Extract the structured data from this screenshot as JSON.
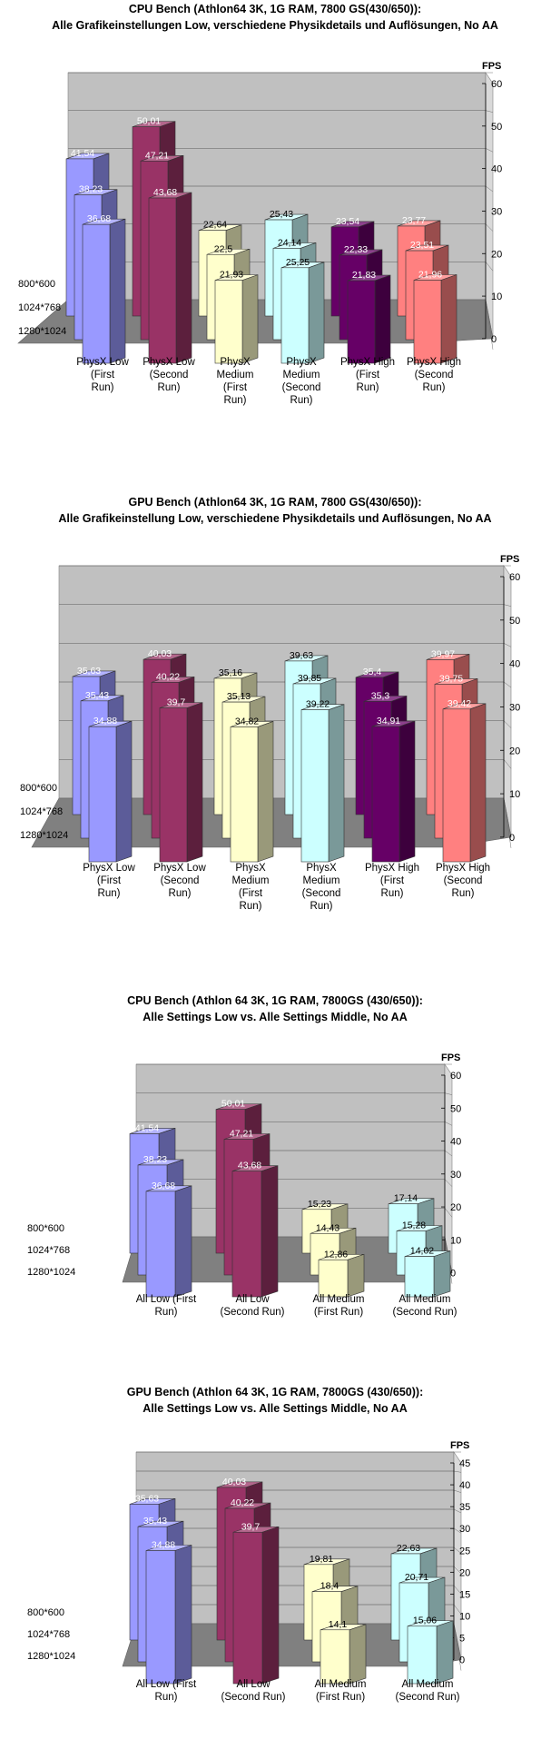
{
  "chart_data": [
    {
      "type": "bar",
      "title": "CPU Bench (Athlon64 3K, 1G RAM, 7800 GS(430/650)):",
      "subtitle": "Alle Grafikeinstellungen Low, verschiedene Physikdetails und Auflösungen, No AA",
      "ylabel": "FPS",
      "ylim": [
        0,
        60
      ],
      "ytick_step": 10,
      "grid": true,
      "categories": [
        "PhysX Low (First Run)",
        "PhysX Low (Second Run)",
        "PhysX Medium (First Run)",
        "PhysX Medium (Second Run)",
        "PhysX High (First Run)",
        "PhysX High (Second Run)"
      ],
      "category_colors": [
        "#9999ff",
        "#993366",
        "#ffffcc",
        "#ccffff",
        "#660066",
        "#ff8080"
      ],
      "series": [
        {
          "name": "800*600",
          "values": [
            41.54,
            50.01,
            22.64,
            25.43,
            23.54,
            23.77
          ],
          "labels": [
            "41,54",
            "50,01",
            "22,64",
            "25,43",
            "23,54",
            "23,77"
          ]
        },
        {
          "name": "1024*768",
          "values": [
            38.23,
            47.21,
            22.5,
            24.14,
            22.33,
            23.51
          ],
          "labels": [
            "38,23",
            "47,21",
            "22,5",
            "24,14",
            "22,33",
            "23,51"
          ]
        },
        {
          "name": "1280*1024",
          "values": [
            36.68,
            43.68,
            21.93,
            25.25,
            21.83,
            21.96
          ],
          "labels": [
            "36,68",
            "43,68",
            "21,93",
            "25,25",
            "21,83",
            "21,96"
          ]
        }
      ]
    },
    {
      "type": "bar",
      "title": "GPU Bench (Athlon64 3K, 1G RAM, 7800 GS(430/650)):",
      "subtitle": "Alle Grafikeinstellung Low, verschiedene Physikdetails und Auflösungen, No AA",
      "ylabel": "FPS",
      "ylim": [
        0,
        60
      ],
      "ytick_step": 10,
      "grid": true,
      "categories": [
        "PhysX Low (First Run)",
        "PhysX Low (Second Run)",
        "PhysX Medium (First Run)",
        "PhysX Medium (Second Run)",
        "PhysX High (First Run)",
        "PhysX High (Second Run)"
      ],
      "category_colors": [
        "#9999ff",
        "#993366",
        "#ffffcc",
        "#ccffff",
        "#660066",
        "#ff8080"
      ],
      "series": [
        {
          "name": "800*600",
          "values": [
            35.63,
            40.03,
            35.16,
            39.63,
            35.4,
            39.97
          ],
          "labels": [
            "35,63",
            "40,03",
            "35,16",
            "39,63",
            "35,4",
            "39,97"
          ]
        },
        {
          "name": "1024*768",
          "values": [
            35.43,
            40.22,
            35.13,
            39.85,
            35.3,
            39.75
          ],
          "labels": [
            "35,43",
            "40,22",
            "35,13",
            "39,85",
            "35,3",
            "39,75"
          ]
        },
        {
          "name": "1280*1024",
          "values": [
            34.88,
            39.7,
            34.82,
            39.22,
            34.91,
            39.42
          ],
          "labels": [
            "34,88",
            "39,7",
            "34,82",
            "39,22",
            "34,91",
            "39,42"
          ]
        }
      ]
    },
    {
      "type": "bar",
      "title": "CPU Bench (Athlon 64 3K, 1G RAM, 7800GS (430/650)):",
      "subtitle": "Alle Settings Low vs. Alle Settings Middle, No AA",
      "ylabel": "FPS",
      "ylim": [
        0,
        60
      ],
      "ytick_step": 10,
      "grid": true,
      "categories": [
        "All Low (First Run)",
        "All Low (Second Run)",
        "All Medium (First Run)",
        "All Medium (Second Run)"
      ],
      "category_colors": [
        "#9999ff",
        "#993366",
        "#ffffcc",
        "#ccffff"
      ],
      "series": [
        {
          "name": "800*600",
          "values": [
            41.54,
            50.01,
            15.23,
            17.14
          ],
          "labels": [
            "41,54",
            "50,01",
            "15,23",
            "17,14"
          ]
        },
        {
          "name": "1024*768",
          "values": [
            38.23,
            47.21,
            14.43,
            15.28
          ],
          "labels": [
            "38,23",
            "47,21",
            "14,43",
            "15,28"
          ]
        },
        {
          "name": "1280*1024",
          "values": [
            36.68,
            43.68,
            12.86,
            14.02
          ],
          "labels": [
            "36,68",
            "43,68",
            "12,86",
            "14,02"
          ]
        }
      ]
    },
    {
      "type": "bar",
      "title": "GPU Bench (Athlon 64 3K, 1G RAM, 7800GS (430/650)):",
      "subtitle": "Alle Settings Low vs. Alle Settings Middle, No AA",
      "ylabel": "FPS",
      "ylim": [
        0,
        45
      ],
      "ytick_step": 5,
      "grid": true,
      "categories": [
        "All Low (First Run)",
        "All Low (Second Run)",
        "All Medium (First Run)",
        "All Medium (Second Run)"
      ],
      "category_colors": [
        "#9999ff",
        "#993366",
        "#ffffcc",
        "#ccffff"
      ],
      "series": [
        {
          "name": "800*600",
          "values": [
            35.63,
            40.03,
            19.81,
            22.63
          ],
          "labels": [
            "35,63",
            "40,03",
            "19,81",
            "22,63"
          ]
        },
        {
          "name": "1024*768",
          "values": [
            35.43,
            40.22,
            18.4,
            20.71
          ],
          "labels": [
            "35,43",
            "40,22",
            "18,4",
            "20,71"
          ]
        },
        {
          "name": "1280*1024",
          "values": [
            34.88,
            39.7,
            14.1,
            15.06
          ],
          "labels": [
            "34,88",
            "39,7",
            "14,1",
            "15,06"
          ]
        }
      ]
    }
  ]
}
